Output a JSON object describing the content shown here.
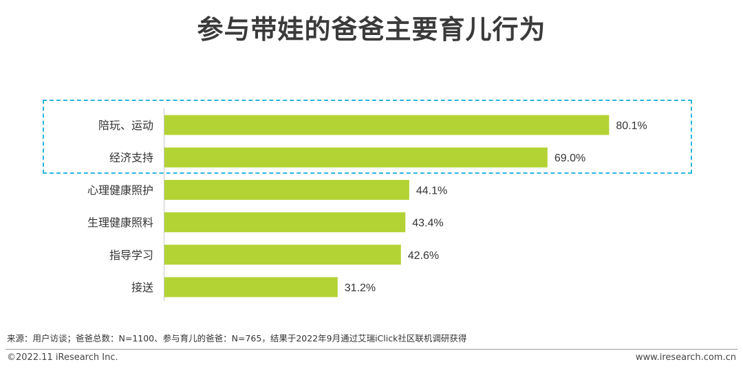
{
  "title": "参与带娃的爸爸主要育儿行为",
  "chart_data": {
    "type": "bar",
    "orientation": "horizontal",
    "categories": [
      "陪玩、运动",
      "经济支持",
      "心理健康照护",
      "生理健康照料",
      "指导学习",
      "接送"
    ],
    "values": [
      80.1,
      69.0,
      44.1,
      43.4,
      42.6,
      31.2
    ],
    "value_labels": [
      "80.1%",
      "69.0%",
      "44.1%",
      "43.4%",
      "42.6%",
      "31.2%"
    ],
    "unit": "%",
    "xlim": [
      0,
      100
    ],
    "grid": false,
    "highlighted_categories": [
      "陪玩、运动",
      "经济支持"
    ],
    "bar_color": "#b3d334",
    "highlight_border_color": "#29b5e0"
  },
  "source_note": "来源：用户访谈；爸爸总数：N=1100、参与育儿的爸爸：N=765，结果于2022年9月通过艾瑞iClick社区联机调研获得",
  "copyright": "©2022.11 iResearch Inc.",
  "website": "www.iresearch.com.cn"
}
